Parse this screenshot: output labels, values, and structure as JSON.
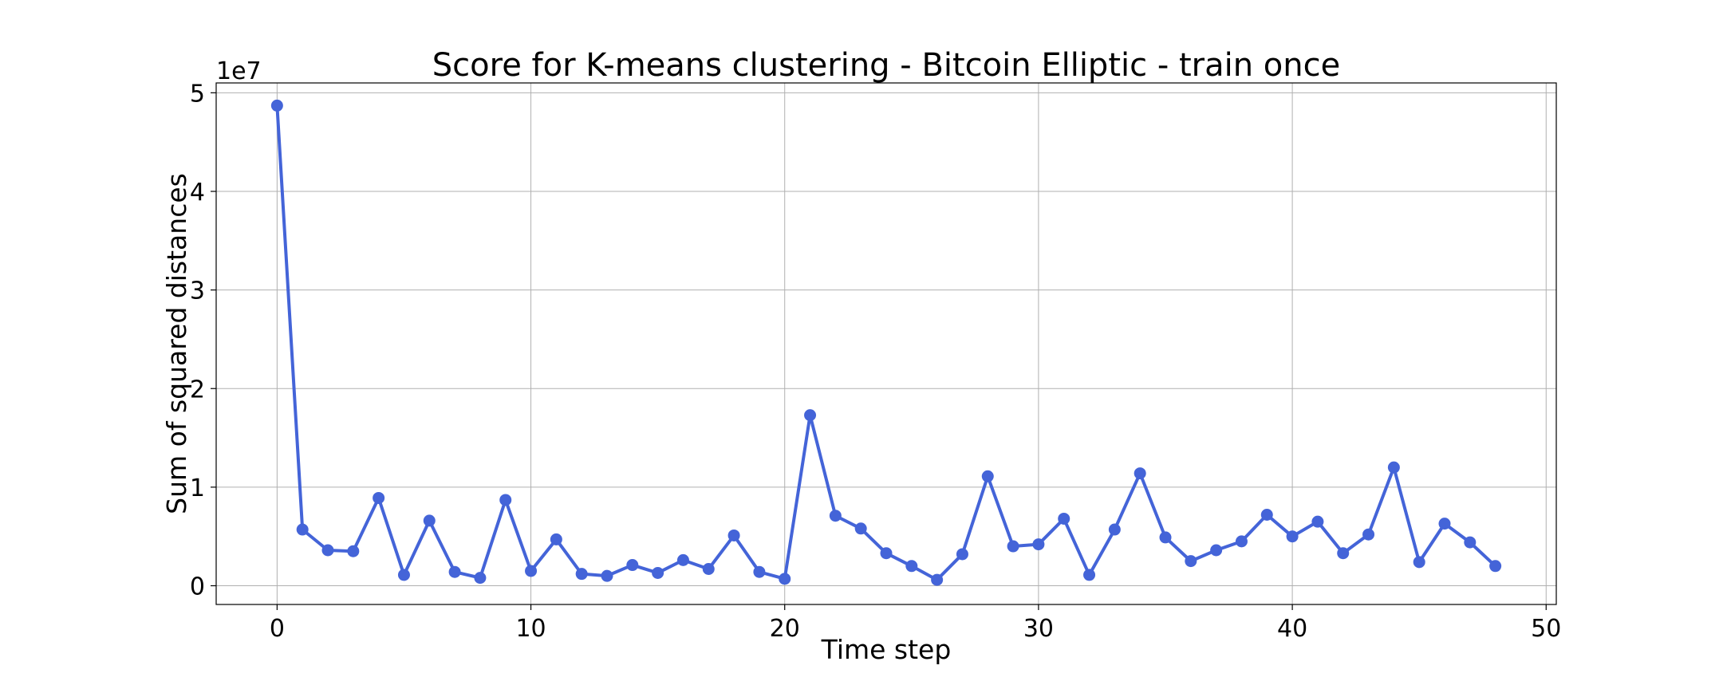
{
  "chart_data": {
    "type": "line",
    "title": "Score for K-means clustering - Bitcoin Elliptic - train once",
    "xlabel": "Time step",
    "ylabel": "Sum of squared distances",
    "y_offset_text": "1e7",
    "y_scale_factor": 10000000,
    "xlim": [
      -2.4,
      50.4
    ],
    "ylim": [
      -1900000,
      51000000
    ],
    "xticks": [
      0,
      10,
      20,
      30,
      40,
      50
    ],
    "yticks": [
      0,
      10000000,
      20000000,
      30000000,
      40000000,
      50000000
    ],
    "ytick_labels": [
      "0",
      "1",
      "2",
      "3",
      "4",
      "5"
    ],
    "grid": true,
    "color": "#4464d8",
    "series": [
      {
        "x": [
          0,
          1,
          2,
          3,
          4,
          5,
          6,
          7,
          8,
          9,
          10,
          11,
          12,
          13,
          14,
          15,
          16,
          17,
          18,
          19,
          20,
          21,
          22,
          23,
          24,
          25,
          26,
          27,
          28,
          29,
          30,
          31,
          32,
          33,
          34,
          35,
          36,
          37,
          38,
          39,
          40,
          41,
          42,
          43,
          44,
          45,
          46,
          47,
          48
        ],
        "values": [
          48700000,
          5700000,
          3600000,
          3500000,
          8900000,
          1100000,
          6600000,
          1400000,
          800000,
          8700000,
          1500000,
          4700000,
          1200000,
          1000000,
          2100000,
          1300000,
          2600000,
          1700000,
          5100000,
          1400000,
          700000,
          17300000,
          7100000,
          5800000,
          3300000,
          2000000,
          600000,
          3200000,
          11100000,
          4000000,
          4200000,
          6800000,
          1100000,
          5700000,
          11400000,
          4900000,
          2500000,
          3600000,
          4500000,
          7200000,
          5000000,
          6500000,
          3300000,
          5200000,
          12000000,
          2400000,
          6300000,
          4400000,
          2000000
        ]
      }
    ]
  }
}
